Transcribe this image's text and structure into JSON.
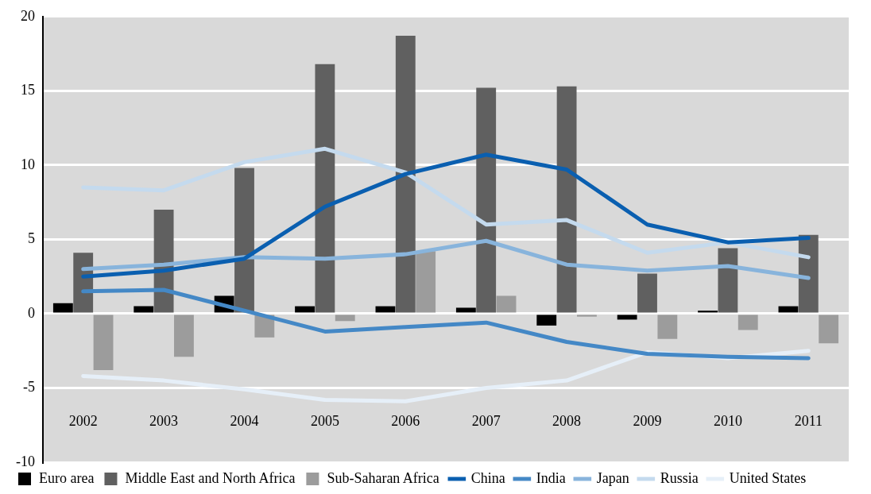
{
  "chart_data": {
    "type": "bar",
    "categories": [
      "2002",
      "2003",
      "2004",
      "2005",
      "2006",
      "2007",
      "2008",
      "2009",
      "2010",
      "2011"
    ],
    "series": [
      {
        "name": "Euro area",
        "color": "#000000",
        "values": [
          0.7,
          0.5,
          1.2,
          0.5,
          0.5,
          0.4,
          -0.8,
          -0.4,
          0.2,
          0.5
        ]
      },
      {
        "name": "Middle East and North Africa",
        "color": "#606060",
        "values": [
          4.1,
          7.0,
          9.8,
          16.8,
          18.7,
          15.2,
          15.3,
          2.7,
          4.4,
          5.3
        ]
      },
      {
        "name": "Sub-Saharan Africa",
        "color": "#9c9c9c",
        "values": [
          -3.8,
          -2.9,
          -1.6,
          -0.5,
          4.2,
          1.2,
          -0.2,
          -1.7,
          -1.1,
          -2.0
        ]
      },
      {
        "name": "China",
        "type": "line",
        "color": "#0a5fb0",
        "values": [
          2.5,
          2.9,
          3.7,
          7.2,
          9.4,
          10.7,
          9.7,
          6.0,
          4.8,
          5.1
        ]
      },
      {
        "name": "India",
        "type": "line",
        "color": "#4488c6",
        "values": [
          1.5,
          1.6,
          0.2,
          -1.2,
          -0.9,
          -0.6,
          -1.9,
          -2.7,
          -2.9,
          -3.0
        ]
      },
      {
        "name": "Japan",
        "type": "line",
        "color": "#88b4dc",
        "values": [
          3.0,
          3.3,
          3.8,
          3.7,
          4.0,
          4.9,
          3.3,
          2.9,
          3.2,
          2.4
        ]
      },
      {
        "name": "Russia",
        "type": "line",
        "color": "#c4daee",
        "values": [
          8.5,
          8.3,
          10.2,
          11.1,
          9.5,
          6.0,
          6.3,
          4.1,
          4.8,
          3.8
        ]
      },
      {
        "name": "United States",
        "type": "line",
        "color": "#e6eff8",
        "values": [
          -4.2,
          -4.5,
          -5.1,
          -5.8,
          -5.9,
          -5.0,
          -4.5,
          -2.6,
          -3.0,
          -2.5
        ]
      }
    ],
    "ylim": [
      -10,
      20
    ],
    "yticks": [
      -10,
      -5,
      0,
      5,
      10,
      15,
      20
    ],
    "grid": "y",
    "legend": "bottom",
    "marker": "none",
    "line_style": "solid"
  }
}
